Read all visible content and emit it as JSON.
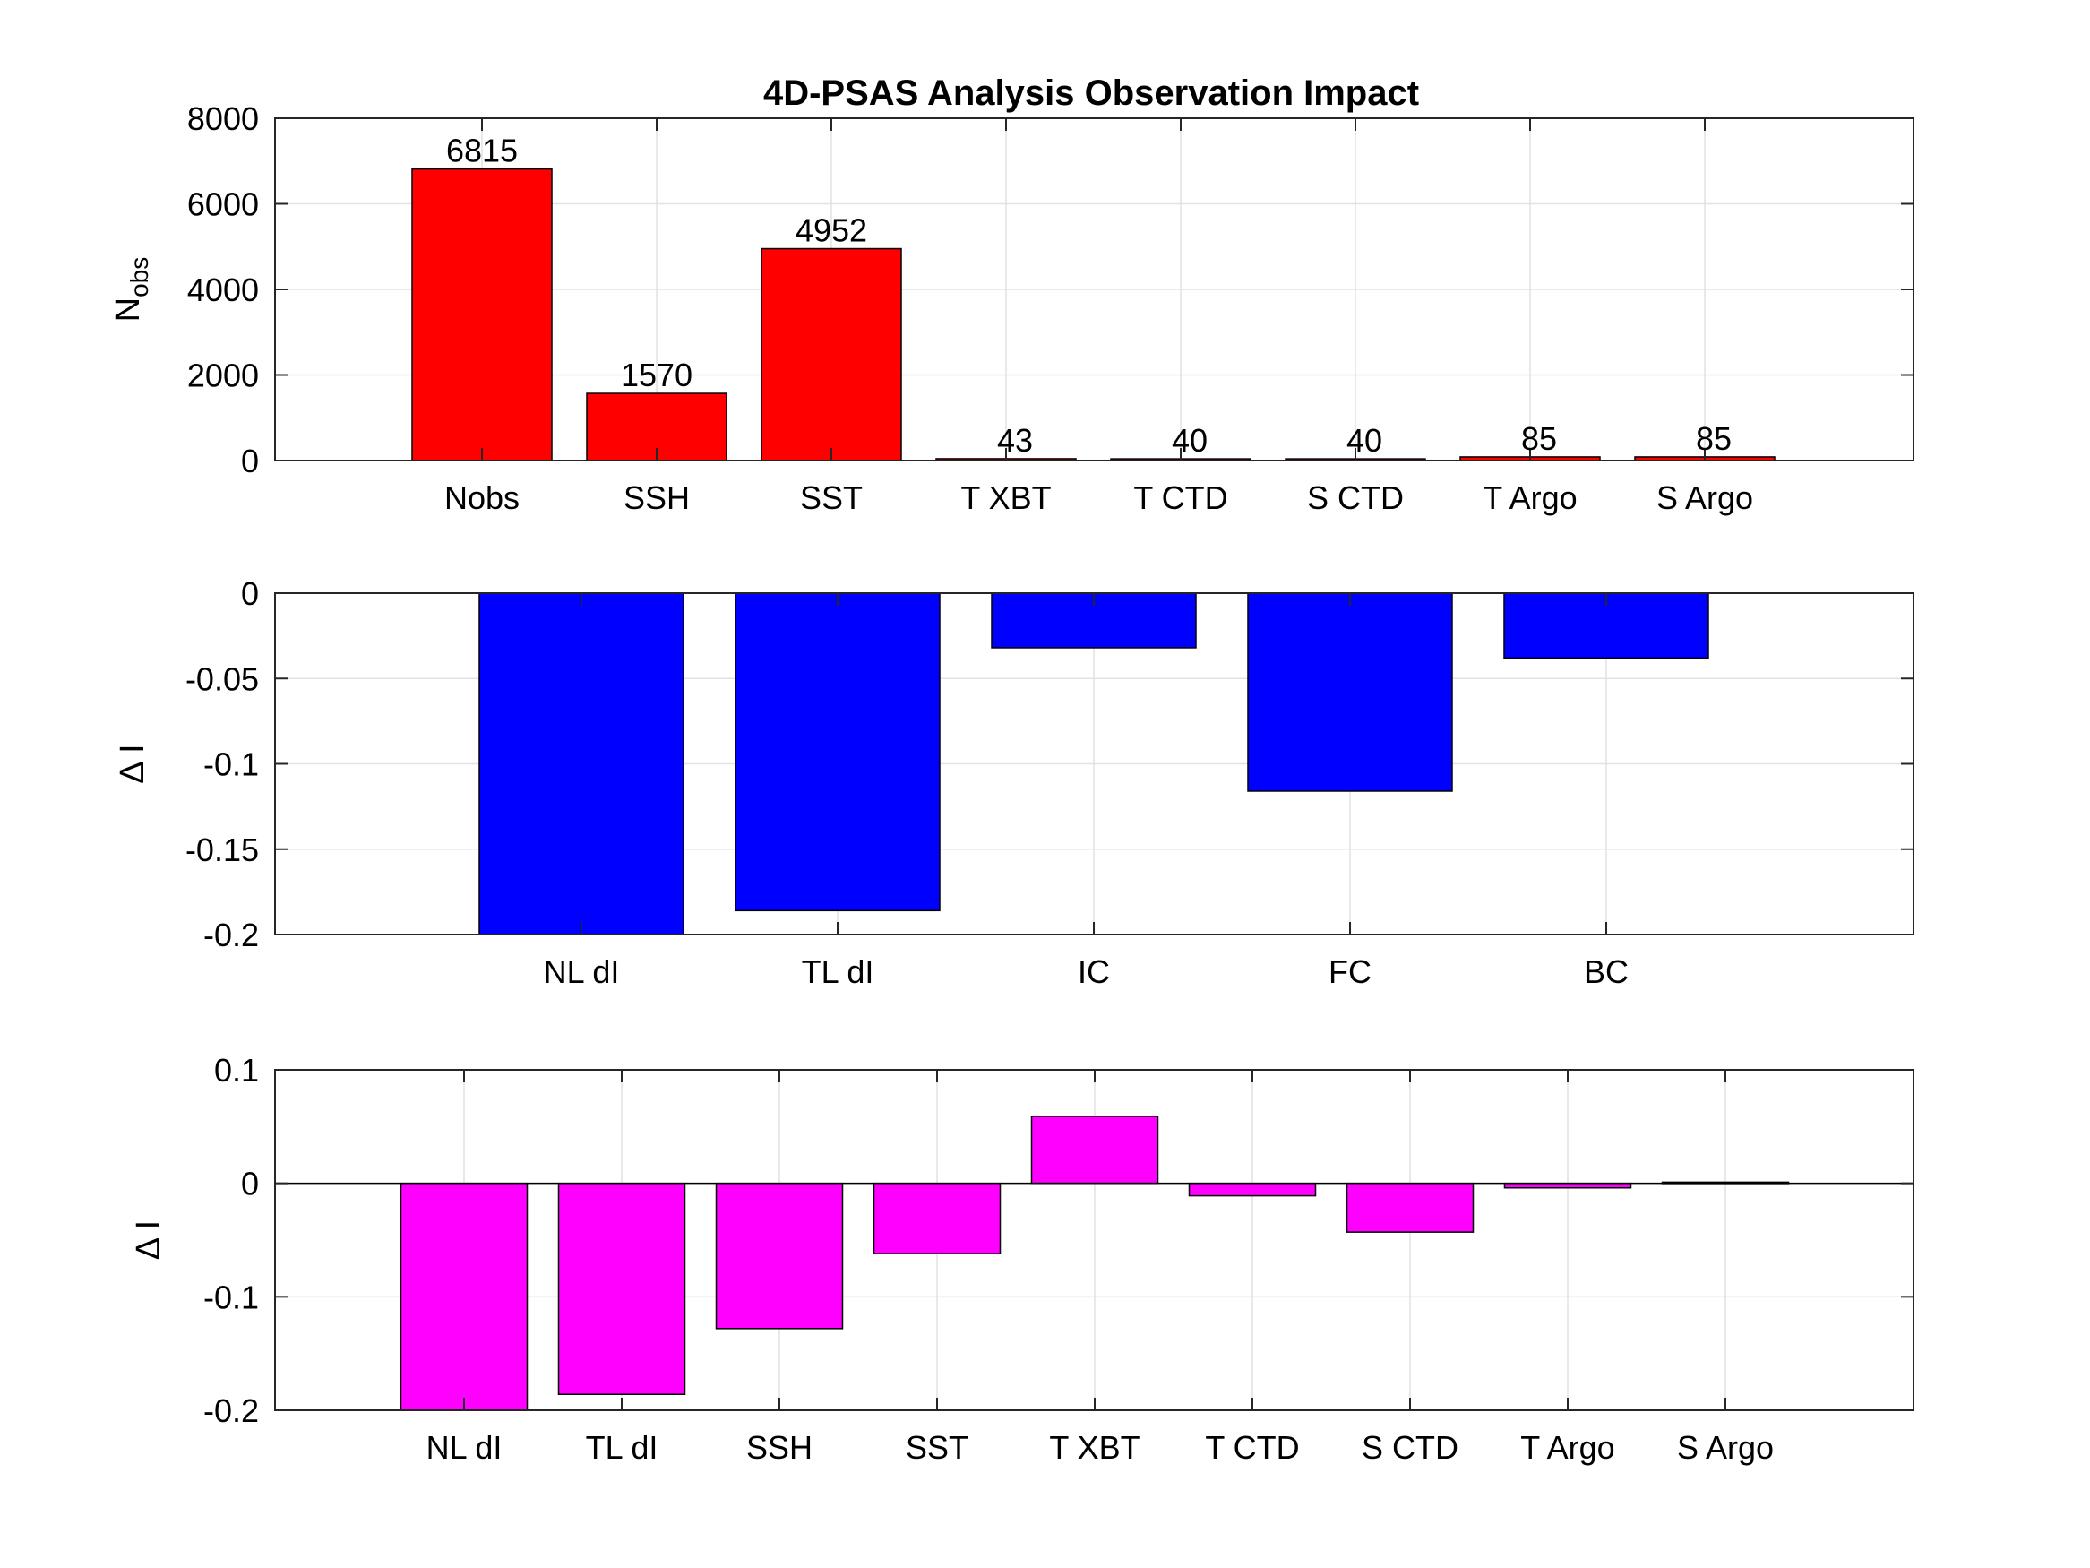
{
  "chart_data": [
    {
      "type": "bar",
      "title": "4D-PSAS Analysis Observation Impact",
      "ylabel": {
        "main": "N",
        "sub": "obs"
      },
      "categories": [
        "Nobs",
        "SSH",
        "SST",
        "T XBT",
        "T CTD",
        "S CTD",
        "T Argo",
        "S Argo"
      ],
      "values": [
        6815,
        1570,
        4952,
        43,
        40,
        40,
        85,
        85
      ],
      "data_labels": [
        "6815",
        "1570",
        "4952",
        "43",
        "40",
        "40",
        "85",
        "85"
      ],
      "ylim": [
        0,
        8000
      ],
      "yticks": [
        0,
        2000,
        4000,
        6000,
        8000
      ],
      "ytick_labels": [
        "0",
        "2000",
        "4000",
        "6000",
        "8000"
      ],
      "bar_color": "#ff0000",
      "grid": true
    },
    {
      "type": "bar",
      "ylabel": "Δ I",
      "categories": [
        "NL dI",
        "TL dI",
        "IC",
        "FC",
        "BC"
      ],
      "values": [
        -0.2,
        -0.186,
        -0.032,
        -0.116,
        -0.038
      ],
      "ylim": [
        -0.2,
        0
      ],
      "yticks": [
        -0.2,
        -0.15,
        -0.1,
        -0.05,
        0
      ],
      "ytick_labels": [
        "-0.2",
        "-0.15",
        "-0.1",
        "-0.05",
        "0"
      ],
      "bar_color": "#0000ff",
      "grid": true
    },
    {
      "type": "bar",
      "ylabel": "Δ I",
      "categories": [
        "NL dI",
        "TL dI",
        "SSH",
        "SST",
        "T XBT",
        "T CTD",
        "S CTD",
        "T Argo",
        "S Argo"
      ],
      "values": [
        -0.2,
        -0.186,
        -0.128,
        -0.062,
        0.059,
        -0.011,
        -0.043,
        -0.004,
        0.001
      ],
      "ylim": [
        -0.2,
        0.1
      ],
      "yticks": [
        -0.2,
        -0.1,
        0,
        0.1
      ],
      "ytick_labels": [
        "-0.2",
        "-0.1",
        "0",
        "0.1"
      ],
      "bar_color": "#ff00ff",
      "grid": true
    }
  ]
}
